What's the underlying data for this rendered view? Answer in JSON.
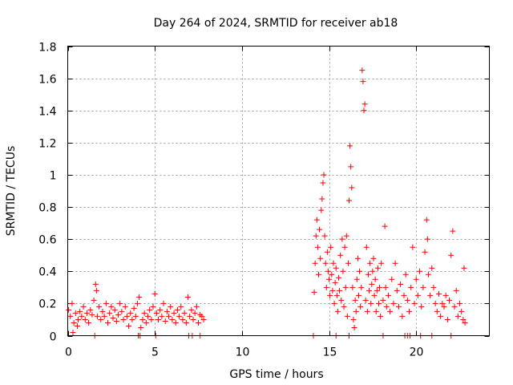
{
  "chart_data": {
    "type": "scatter",
    "title": "Day 264 of 2024, SRMTID for receiver ab18",
    "xlabel": "GPS time / hours",
    "ylabel": "SRMTID / TECUs",
    "xlim": [
      0,
      24.2
    ],
    "ylim": [
      0,
      1.8
    ],
    "xticks": [
      0,
      5,
      10,
      15,
      20
    ],
    "xtick_labels": [
      "0",
      "5",
      "10",
      "15",
      "20"
    ],
    "yticks": [
      0,
      0.2,
      0.4,
      0.6,
      0.8,
      1.0,
      1.2,
      1.4,
      1.6,
      1.8
    ],
    "ytick_labels": [
      "0",
      "0.2",
      "0.4",
      "0.6",
      "0.8",
      "1",
      "1.2",
      "1.4",
      "1.6",
      "1.8"
    ],
    "grid": true,
    "marker": "plus",
    "color": "#ff0000",
    "series": [
      {
        "name": "SRMTID",
        "points": [
          [
            0.05,
            0.16
          ],
          [
            0.15,
            0.12
          ],
          [
            0.25,
            0.2
          ],
          [
            0.35,
            0.08
          ],
          [
            0.45,
            0.14
          ],
          [
            0.55,
            0.06
          ],
          [
            0.6,
            0.1
          ],
          [
            0.7,
            0.15
          ],
          [
            0.8,
            0.12
          ],
          [
            0.9,
            0.18
          ],
          [
            1.0,
            0.1
          ],
          [
            1.1,
            0.14
          ],
          [
            1.2,
            0.08
          ],
          [
            1.3,
            0.16
          ],
          [
            1.4,
            0.13
          ],
          [
            1.5,
            0.22
          ],
          [
            1.6,
            0.32
          ],
          [
            1.65,
            0.28
          ],
          [
            1.7,
            0.12
          ],
          [
            1.8,
            0.18
          ],
          [
            1.9,
            0.1
          ],
          [
            2.0,
            0.15
          ],
          [
            2.1,
            0.12
          ],
          [
            2.2,
            0.2
          ],
          [
            2.3,
            0.08
          ],
          [
            2.4,
            0.14
          ],
          [
            2.5,
            0.18
          ],
          [
            2.6,
            0.11
          ],
          [
            2.7,
            0.16
          ],
          [
            2.8,
            0.09
          ],
          [
            2.9,
            0.13
          ],
          [
            3.0,
            0.2
          ],
          [
            3.1,
            0.15
          ],
          [
            3.2,
            0.1
          ],
          [
            3.3,
            0.18
          ],
          [
            3.4,
            0.12
          ],
          [
            3.5,
            0.06
          ],
          [
            3.6,
            0.14
          ],
          [
            3.7,
            0.1
          ],
          [
            3.8,
            0.17
          ],
          [
            3.9,
            0.12
          ],
          [
            4.0,
            0.2
          ],
          [
            4.1,
            0.24
          ],
          [
            4.2,
            0.05
          ],
          [
            4.3,
            0.1
          ],
          [
            4.4,
            0.14
          ],
          [
            4.5,
            0.08
          ],
          [
            4.6,
            0.12
          ],
          [
            4.7,
            0.16
          ],
          [
            4.8,
            0.1
          ],
          [
            4.9,
            0.18
          ],
          [
            5.0,
            0.26
          ],
          [
            5.1,
            0.14
          ],
          [
            5.2,
            0.1
          ],
          [
            5.3,
            0.16
          ],
          [
            5.4,
            0.12
          ],
          [
            5.5,
            0.2
          ],
          [
            5.6,
            0.09
          ],
          [
            5.7,
            0.15
          ],
          [
            5.8,
            0.12
          ],
          [
            5.9,
            0.18
          ],
          [
            6.0,
            0.1
          ],
          [
            6.1,
            0.14
          ],
          [
            6.2,
            0.08
          ],
          [
            6.3,
            0.16
          ],
          [
            6.4,
            0.12
          ],
          [
            6.5,
            0.18
          ],
          [
            6.6,
            0.1
          ],
          [
            6.7,
            0.14
          ],
          [
            6.8,
            0.08
          ],
          [
            6.9,
            0.24
          ],
          [
            7.0,
            0.12
          ],
          [
            7.1,
            0.16
          ],
          [
            7.2,
            0.1
          ],
          [
            7.3,
            0.14
          ],
          [
            7.4,
            0.18
          ],
          [
            7.5,
            0.08
          ],
          [
            7.6,
            0.13
          ],
          [
            7.7,
            0.12
          ],
          [
            7.8,
            0.1
          ],
          [
            0.3,
            0.02
          ],
          [
            1.55,
            0.0
          ],
          [
            4.05,
            0.0
          ],
          [
            4.15,
            0.0
          ],
          [
            5.05,
            0.0
          ],
          [
            6.95,
            0.0
          ],
          [
            7.15,
            0.0
          ],
          [
            7.6,
            0.0
          ],
          [
            14.1,
            0.0
          ],
          [
            14.15,
            0.27
          ],
          [
            14.2,
            0.45
          ],
          [
            14.25,
            0.62
          ],
          [
            14.3,
            0.72
          ],
          [
            14.35,
            0.55
          ],
          [
            14.4,
            0.38
          ],
          [
            14.45,
            0.66
          ],
          [
            14.5,
            0.48
          ],
          [
            14.55,
            0.78
          ],
          [
            14.6,
            0.85
          ],
          [
            14.65,
            0.95
          ],
          [
            14.7,
            1.0
          ],
          [
            14.75,
            0.62
          ],
          [
            14.8,
            0.45
          ],
          [
            14.85,
            0.3
          ],
          [
            14.9,
            0.52
          ],
          [
            14.95,
            0.4
          ],
          [
            15.0,
            0.35
          ],
          [
            15.05,
            0.25
          ],
          [
            15.1,
            0.55
          ],
          [
            15.15,
            0.38
          ],
          [
            15.2,
            0.28
          ],
          [
            15.25,
            0.45
          ],
          [
            15.3,
            0.2
          ],
          [
            15.35,
            0.33
          ],
          [
            15.4,
            0.42
          ],
          [
            15.45,
            0.25
          ],
          [
            15.5,
            0.15
          ],
          [
            15.55,
            0.36
          ],
          [
            15.6,
            0.28
          ],
          [
            15.65,
            0.5
          ],
          [
            15.7,
            0.22
          ],
          [
            15.75,
            0.6
          ],
          [
            15.8,
            0.4
          ],
          [
            15.85,
            0.18
          ],
          [
            15.9,
            0.55
          ],
          [
            15.95,
            0.3
          ],
          [
            16.0,
            0.62
          ],
          [
            16.05,
            0.12
          ],
          [
            16.1,
            0.45
          ],
          [
            16.15,
            0.84
          ],
          [
            16.2,
            1.18
          ],
          [
            16.25,
            1.05
          ],
          [
            16.3,
            0.92
          ],
          [
            16.35,
            0.3
          ],
          [
            16.4,
            0.1
          ],
          [
            16.45,
            0.05
          ],
          [
            16.5,
            0.22
          ],
          [
            16.55,
            0.15
          ],
          [
            16.6,
            0.35
          ],
          [
            16.65,
            0.48
          ],
          [
            16.7,
            0.25
          ],
          [
            16.75,
            0.4
          ],
          [
            16.8,
            0.18
          ],
          [
            16.85,
            0.3
          ],
          [
            16.9,
            1.65
          ],
          [
            16.95,
            1.58
          ],
          [
            17.0,
            1.4
          ],
          [
            17.05,
            1.44
          ],
          [
            17.1,
            0.22
          ],
          [
            17.15,
            0.55
          ],
          [
            17.2,
            0.15
          ],
          [
            17.25,
            0.38
          ],
          [
            17.3,
            0.28
          ],
          [
            17.35,
            0.45
          ],
          [
            17.4,
            0.2
          ],
          [
            17.45,
            0.32
          ],
          [
            17.5,
            0.4
          ],
          [
            17.55,
            0.48
          ],
          [
            17.6,
            0.25
          ],
          [
            17.65,
            0.35
          ],
          [
            17.7,
            0.15
          ],
          [
            17.75,
            0.28
          ],
          [
            17.8,
            0.42
          ],
          [
            17.85,
            0.2
          ],
          [
            17.9,
            0.3
          ],
          [
            17.95,
            0.12
          ],
          [
            18.0,
            0.45
          ],
          [
            18.1,
            0.22
          ],
          [
            18.2,
            0.68
          ],
          [
            18.25,
            0.3
          ],
          [
            18.3,
            0.18
          ],
          [
            18.4,
            0.25
          ],
          [
            18.5,
            0.15
          ],
          [
            18.6,
            0.35
          ],
          [
            18.7,
            0.2
          ],
          [
            18.8,
            0.45
          ],
          [
            18.9,
            0.28
          ],
          [
            19.0,
            0.18
          ],
          [
            19.1,
            0.32
          ],
          [
            19.2,
            0.12
          ],
          [
            19.3,
            0.25
          ],
          [
            19.4,
            0.38
          ],
          [
            19.5,
            0.22
          ],
          [
            19.6,
            0.15
          ],
          [
            19.7,
            0.3
          ],
          [
            19.8,
            0.55
          ],
          [
            19.9,
            0.2
          ],
          [
            20.0,
            0.35
          ],
          [
            20.1,
            0.25
          ],
          [
            20.2,
            0.4
          ],
          [
            20.3,
            0.18
          ],
          [
            20.4,
            0.3
          ],
          [
            20.5,
            0.52
          ],
          [
            20.6,
            0.72
          ],
          [
            20.65,
            0.6
          ],
          [
            20.7,
            0.38
          ],
          [
            20.8,
            0.25
          ],
          [
            20.9,
            0.42
          ],
          [
            21.0,
            0.3
          ],
          [
            21.1,
            0.2
          ],
          [
            21.2,
            0.15
          ],
          [
            21.3,
            0.26
          ],
          [
            21.4,
            0.12
          ],
          [
            21.5,
            0.2
          ],
          [
            21.6,
            0.18
          ],
          [
            21.7,
            0.25
          ],
          [
            21.8,
            0.1
          ],
          [
            21.9,
            0.22
          ],
          [
            22.0,
            0.5
          ],
          [
            22.1,
            0.65
          ],
          [
            22.2,
            0.18
          ],
          [
            22.3,
            0.28
          ],
          [
            22.4,
            0.12
          ],
          [
            22.5,
            0.2
          ],
          [
            22.6,
            0.15
          ],
          [
            22.7,
            0.1
          ],
          [
            22.75,
            0.42
          ],
          [
            22.8,
            0.08
          ],
          [
            15.4,
            0.0
          ],
          [
            16.15,
            0.0
          ],
          [
            18.1,
            0.0
          ],
          [
            19.35,
            0.0
          ],
          [
            19.5,
            0.0
          ],
          [
            19.65,
            0.0
          ],
          [
            20.25,
            0.0
          ],
          [
            20.9,
            0.0
          ],
          [
            22.0,
            0.0
          ]
        ]
      }
    ]
  }
}
